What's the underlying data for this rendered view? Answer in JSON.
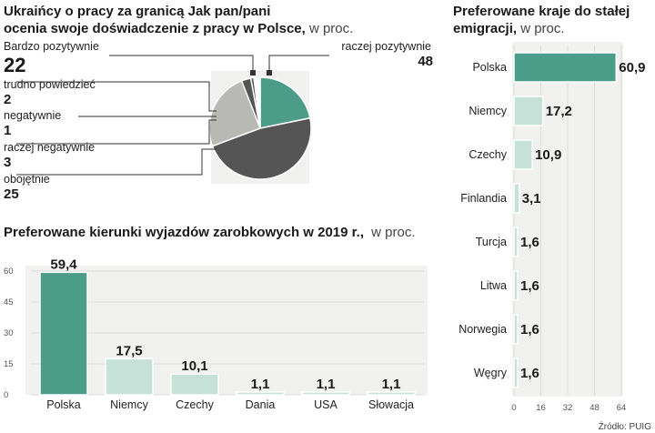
{
  "colors": {
    "teal": "#4b9c88",
    "light_teal": "#c5e1d8",
    "dark_gray": "#555555",
    "mid_gray": "#b8b8b4",
    "panel_bg": "#f1f1ef",
    "grid": "#dddddd"
  },
  "source": "Źródło: PUIG",
  "chart_data": [
    {
      "type": "pie",
      "title": "Ukraińcy o pracy za granicą Jak pan/pani ocenia swoje doświadczenie z pracy w Polsce,",
      "title_suffix": "w proc.",
      "slices": [
        {
          "label": "Bardzo pozytywnie",
          "value": 22,
          "value_text": "22",
          "color": "#4b9c88"
        },
        {
          "label": "raczej pozytywnie",
          "value": 48,
          "value_text": "48",
          "color": "#555555"
        },
        {
          "label": "obojętnie",
          "value": 25,
          "value_text": "25",
          "color": "#b8b8b4"
        },
        {
          "label": "raczej negatywnie",
          "value": 3,
          "value_text": "3",
          "color": "#555555"
        },
        {
          "label": "negatywnie",
          "value": 1,
          "value_text": "1",
          "color": "#555555"
        },
        {
          "label": "trudno powiedzieć",
          "value": 2,
          "value_text": "2",
          "color": "#ffffff"
        }
      ]
    },
    {
      "type": "bar",
      "title": "Preferowane kierunki wyjazdów zarobkowych w 2019 r.,",
      "title_suffix": "w proc.",
      "categories": [
        "Polska",
        "Niemcy",
        "Czechy",
        "Dania",
        "USA",
        "Słowacja"
      ],
      "values": [
        59.4,
        17.5,
        10.1,
        1.1,
        1.1,
        1.1
      ],
      "value_labels": [
        "59,4",
        "17,5",
        "10,1",
        "1,1",
        "1,1",
        "1,1"
      ],
      "highlight": "Polska",
      "ylim": [
        0,
        60
      ],
      "yticks": [
        0,
        15,
        30,
        45,
        60
      ],
      "grid": true
    },
    {
      "type": "bar",
      "orientation": "horizontal",
      "title": "Preferowane kraje do stałej emigracji,",
      "title_suffix": "w proc.",
      "categories": [
        "Polska",
        "Niemcy",
        "Czechy",
        "Finlandia",
        "Turcja",
        "Litwa",
        "Norwegia",
        "Węgry"
      ],
      "values": [
        60.9,
        17.2,
        10.9,
        3.1,
        1.6,
        1.6,
        1.6,
        1.6
      ],
      "value_labels": [
        "60,9",
        "17,2",
        "10,9",
        "3,1",
        "1,6",
        "1,6",
        "1,6",
        "1,6"
      ],
      "highlight": "Polska",
      "xlim": [
        0,
        64
      ],
      "xticks": [
        0,
        16,
        32,
        48,
        64
      ],
      "grid": true
    }
  ]
}
